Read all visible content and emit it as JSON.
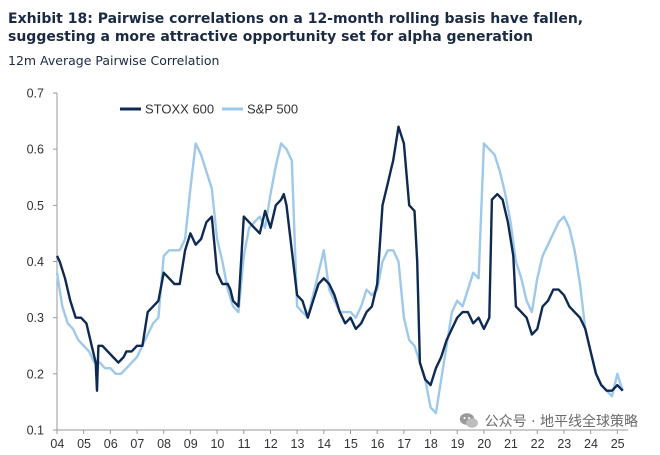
{
  "header": {
    "title": "Exhibit 18: Pairwise correlations on a 12-month rolling basis have fallen, suggesting a more attractive opportunity set for alpha generation",
    "subtitle": "12m Average Pairwise Correlation"
  },
  "watermark": {
    "text": "公众号 · 地平线全球策略"
  },
  "chart_data": {
    "type": "line",
    "title": "",
    "xlabel": "",
    "ylabel": "12m Average Pairwise Correlation",
    "xlim": [
      2004,
      2025.4
    ],
    "ylim": [
      0.1,
      0.7
    ],
    "grid": false,
    "legend_position": "top-left",
    "x_ticks": [
      "04",
      "05",
      "06",
      "07",
      "08",
      "09",
      "10",
      "11",
      "12",
      "13",
      "14",
      "15",
      "16",
      "17",
      "18",
      "19",
      "20",
      "21",
      "22",
      "23",
      "24",
      "25"
    ],
    "y_ticks": [
      "0.1",
      "0.2",
      "0.3",
      "0.4",
      "0.5",
      "0.6",
      "0.7"
    ],
    "colors": {
      "stoxx": "#0f2a52",
      "sp": "#9ec9ea",
      "axis": "#9a9a9a",
      "text": "#333333"
    },
    "series": [
      {
        "name": "STOXX 600",
        "x": [
          2004.0,
          2004.1,
          2004.3,
          2004.5,
          2004.7,
          2004.9,
          2005.1,
          2005.3,
          2005.45,
          2005.5,
          2005.55,
          2005.7,
          2005.9,
          2006.1,
          2006.3,
          2006.5,
          2006.6,
          2006.8,
          2007.0,
          2007.2,
          2007.4,
          2007.6,
          2007.8,
          2008.0,
          2008.2,
          2008.4,
          2008.6,
          2008.8,
          2009.0,
          2009.2,
          2009.4,
          2009.6,
          2009.8,
          2010.0,
          2010.2,
          2010.4,
          2010.5,
          2010.6,
          2010.8,
          2011.0,
          2011.2,
          2011.4,
          2011.6,
          2011.8,
          2012.0,
          2012.2,
          2012.4,
          2012.5,
          2012.6,
          2012.8,
          2013.0,
          2013.2,
          2013.4,
          2013.6,
          2013.8,
          2014.0,
          2014.2,
          2014.4,
          2014.6,
          2014.8,
          2015.0,
          2015.2,
          2015.4,
          2015.6,
          2015.8,
          2016.0,
          2016.2,
          2016.4,
          2016.5,
          2016.6,
          2016.8,
          2017.0,
          2017.2,
          2017.4,
          2017.5,
          2017.6,
          2017.8,
          2018.0,
          2018.2,
          2018.4,
          2018.6,
          2018.8,
          2019.0,
          2019.2,
          2019.4,
          2019.6,
          2019.8,
          2020.0,
          2020.1,
          2020.2,
          2020.3,
          2020.5,
          2020.7,
          2020.9,
          2021.1,
          2021.2,
          2021.4,
          2021.6,
          2021.8,
          2022.0,
          2022.2,
          2022.4,
          2022.6,
          2022.8,
          2023.0,
          2023.2,
          2023.4,
          2023.6,
          2023.8,
          2024.0,
          2024.2,
          2024.4,
          2024.6,
          2024.8,
          2025.0,
          2025.2
        ],
        "values": [
          0.41,
          0.4,
          0.37,
          0.33,
          0.3,
          0.3,
          0.29,
          0.25,
          0.22,
          0.17,
          0.25,
          0.25,
          0.24,
          0.23,
          0.22,
          0.23,
          0.24,
          0.24,
          0.25,
          0.25,
          0.31,
          0.32,
          0.33,
          0.38,
          0.37,
          0.36,
          0.36,
          0.42,
          0.45,
          0.43,
          0.44,
          0.47,
          0.48,
          0.38,
          0.36,
          0.36,
          0.35,
          0.33,
          0.32,
          0.48,
          0.47,
          0.46,
          0.45,
          0.49,
          0.46,
          0.5,
          0.51,
          0.52,
          0.5,
          0.42,
          0.34,
          0.33,
          0.3,
          0.33,
          0.36,
          0.37,
          0.36,
          0.34,
          0.31,
          0.29,
          0.3,
          0.28,
          0.29,
          0.31,
          0.32,
          0.36,
          0.5,
          0.54,
          0.56,
          0.58,
          0.64,
          0.61,
          0.5,
          0.49,
          0.4,
          0.22,
          0.19,
          0.18,
          0.21,
          0.23,
          0.26,
          0.28,
          0.3,
          0.31,
          0.31,
          0.29,
          0.3,
          0.28,
          0.29,
          0.3,
          0.51,
          0.52,
          0.51,
          0.47,
          0.41,
          0.32,
          0.31,
          0.3,
          0.27,
          0.28,
          0.32,
          0.33,
          0.35,
          0.35,
          0.34,
          0.32,
          0.31,
          0.3,
          0.28,
          0.24,
          0.2,
          0.18,
          0.17,
          0.17,
          0.18,
          0.17
        ]
      },
      {
        "name": "S&P 500",
        "x": [
          2004.0,
          2004.2,
          2004.4,
          2004.6,
          2004.8,
          2005.0,
          2005.2,
          2005.4,
          2005.6,
          2005.8,
          2006.0,
          2006.2,
          2006.4,
          2006.6,
          2006.8,
          2007.0,
          2007.2,
          2007.4,
          2007.6,
          2007.8,
          2008.0,
          2008.2,
          2008.4,
          2008.6,
          2008.8,
          2009.0,
          2009.2,
          2009.4,
          2009.6,
          2009.8,
          2010.0,
          2010.2,
          2010.4,
          2010.6,
          2010.8,
          2011.0,
          2011.2,
          2011.4,
          2011.6,
          2011.8,
          2012.0,
          2012.2,
          2012.4,
          2012.6,
          2012.8,
          2013.0,
          2013.2,
          2013.4,
          2013.6,
          2013.8,
          2014.0,
          2014.2,
          2014.4,
          2014.6,
          2014.8,
          2015.0,
          2015.2,
          2015.4,
          2015.6,
          2015.8,
          2016.0,
          2016.2,
          2016.4,
          2016.6,
          2016.8,
          2017.0,
          2017.2,
          2017.4,
          2017.6,
          2017.8,
          2018.0,
          2018.2,
          2018.4,
          2018.6,
          2018.8,
          2019.0,
          2019.2,
          2019.4,
          2019.6,
          2019.8,
          2020.0,
          2020.2,
          2020.4,
          2020.6,
          2020.8,
          2021.0,
          2021.2,
          2021.4,
          2021.6,
          2021.8,
          2022.0,
          2022.2,
          2022.4,
          2022.6,
          2022.8,
          2023.0,
          2023.2,
          2023.4,
          2023.6,
          2023.8,
          2024.0,
          2024.2,
          2024.4,
          2024.6,
          2024.8,
          2025.0,
          2025.2
        ],
        "values": [
          0.38,
          0.32,
          0.29,
          0.28,
          0.26,
          0.25,
          0.24,
          0.22,
          0.22,
          0.21,
          0.21,
          0.2,
          0.2,
          0.21,
          0.22,
          0.23,
          0.25,
          0.27,
          0.29,
          0.3,
          0.41,
          0.42,
          0.42,
          0.42,
          0.44,
          0.53,
          0.61,
          0.59,
          0.56,
          0.53,
          0.44,
          0.4,
          0.35,
          0.32,
          0.31,
          0.41,
          0.46,
          0.47,
          0.48,
          0.46,
          0.52,
          0.57,
          0.61,
          0.6,
          0.58,
          0.32,
          0.31,
          0.3,
          0.34,
          0.38,
          0.42,
          0.35,
          0.33,
          0.31,
          0.31,
          0.31,
          0.3,
          0.32,
          0.35,
          0.34,
          0.35,
          0.4,
          0.42,
          0.42,
          0.4,
          0.3,
          0.26,
          0.25,
          0.22,
          0.19,
          0.14,
          0.13,
          0.19,
          0.25,
          0.31,
          0.33,
          0.32,
          0.35,
          0.38,
          0.37,
          0.61,
          0.6,
          0.59,
          0.56,
          0.52,
          0.47,
          0.4,
          0.37,
          0.33,
          0.31,
          0.37,
          0.41,
          0.43,
          0.45,
          0.47,
          0.48,
          0.46,
          0.42,
          0.36,
          0.28,
          0.24,
          0.2,
          0.18,
          0.17,
          0.16,
          0.2,
          0.17
        ]
      }
    ]
  }
}
